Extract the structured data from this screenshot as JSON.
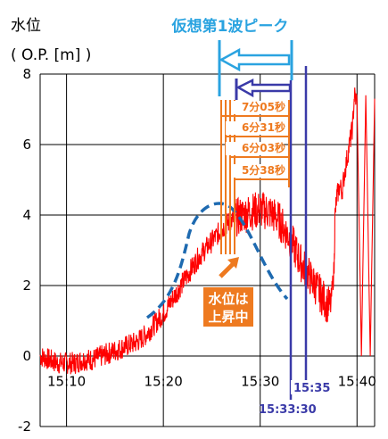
{
  "chart_data": {
    "type": "line",
    "ylabel": "水位",
    "yunit": "( O.P. [m] )",
    "ylim": [
      -2,
      8
    ],
    "yticks": [
      "8",
      "6",
      "4",
      "2",
      "0",
      "-2"
    ],
    "xticks": [
      "15:10",
      "15:20",
      "15:30",
      "15:40"
    ],
    "grid": true,
    "series": [
      {
        "line_color": "#ff0000",
        "time": [
          0,
          1,
          2,
          3,
          4,
          5,
          6,
          7,
          8,
          9,
          10,
          11,
          12,
          13,
          14,
          15,
          16,
          17,
          18,
          19,
          20,
          21,
          22,
          23,
          24,
          25,
          26,
          27,
          27.5,
          28,
          28.5,
          29,
          29.5,
          30,
          30.5,
          31,
          31.5,
          32,
          32.5,
          33,
          33.4,
          33.5,
          33.7,
          34,
          34.3,
          34.6,
          35,
          35.5,
          35.7,
          36,
          36.5,
          37,
          37.5,
          38
        ],
        "values": [
          0.0,
          -0.1,
          -0.2,
          -0.2,
          -0.2,
          -0.1,
          -0.1,
          0.0,
          0.1,
          0.2,
          0.3,
          0.4,
          0.6,
          0.9,
          1.2,
          1.6,
          2.0,
          2.4,
          2.8,
          3.1,
          3.4,
          3.7,
          3.9,
          4.0,
          4.1,
          4.15,
          4.1,
          3.9,
          3.7,
          3.5,
          3.3,
          3.0,
          2.7,
          2.5,
          2.3,
          2.1,
          1.9,
          1.7,
          1.5,
          1.4,
          2.5,
          4.0,
          4.5,
          4.8,
          4.7,
          5.2,
          5.8,
          6.5,
          7.4,
          7.2,
          0.0,
          7.4,
          0.0,
          7.3
        ]
      }
    ],
    "annotations": {
      "title": "仮想第1波ピーク",
      "durations": [
        "7分05秒",
        "6分31秒",
        "6分03秒",
        "5分38秒"
      ],
      "callout": [
        "水位は",
        "上昇中"
      ],
      "time_labels": [
        "15:35",
        "15:33:30"
      ],
      "colors": {
        "title": "#2aa3e0",
        "orange": "#ee7a20",
        "navy": "#3a3aa8",
        "dashed": "#1e6ab0"
      }
    }
  }
}
